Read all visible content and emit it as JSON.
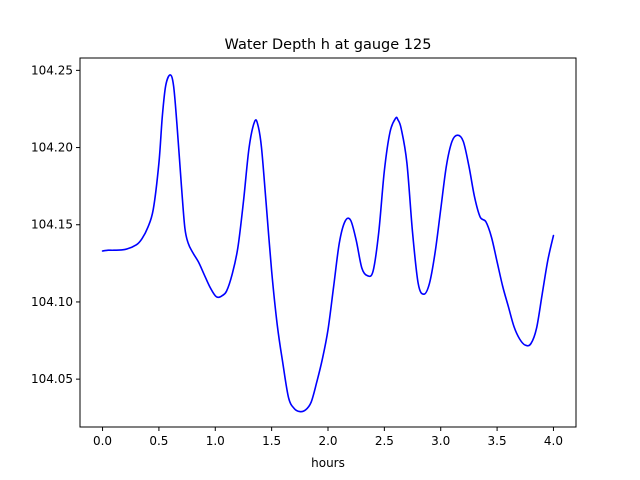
{
  "chart_data": {
    "type": "line",
    "title": "Water Depth h at gauge 125",
    "xlabel": "hours",
    "ylabel": "",
    "xlim": [
      -0.2,
      4.2
    ],
    "ylim": [
      104.019,
      104.258
    ],
    "xticks": [
      0.0,
      0.5,
      1.0,
      1.5,
      2.0,
      2.5,
      3.0,
      3.5,
      4.0
    ],
    "xtick_labels": [
      "0.0",
      "0.5",
      "1.0",
      "1.5",
      "2.0",
      "2.5",
      "3.0",
      "3.5",
      "4.0"
    ],
    "yticks": [
      104.05,
      104.1,
      104.15,
      104.2,
      104.25
    ],
    "ytick_labels": [
      "104.05",
      "104.10",
      "104.15",
      "104.20",
      "104.25"
    ],
    "grid": false,
    "legend": "none",
    "series": [
      {
        "color": "#0000ff",
        "x": [
          0.0,
          0.05,
          0.1,
          0.2,
          0.3,
          0.35,
          0.4,
          0.45,
          0.5,
          0.53,
          0.56,
          0.6,
          0.63,
          0.66,
          0.7,
          0.73,
          0.76,
          0.8,
          0.85,
          0.9,
          0.95,
          1.0,
          1.03,
          1.06,
          1.1,
          1.15,
          1.2,
          1.25,
          1.3,
          1.35,
          1.38,
          1.41,
          1.45,
          1.5,
          1.55,
          1.6,
          1.65,
          1.7,
          1.75,
          1.8,
          1.85,
          1.9,
          1.95,
          2.0,
          2.05,
          2.1,
          2.15,
          2.2,
          2.25,
          2.3,
          2.35,
          2.4,
          2.45,
          2.5,
          2.55,
          2.6,
          2.62,
          2.65,
          2.7,
          2.75,
          2.8,
          2.85,
          2.9,
          2.95,
          3.0,
          3.05,
          3.1,
          3.15,
          3.2,
          3.25,
          3.3,
          3.35,
          3.4,
          3.45,
          3.5,
          3.55,
          3.6,
          3.65,
          3.7,
          3.75,
          3.8,
          3.85,
          3.9,
          3.95,
          4.0
        ],
        "values": [
          104.133,
          104.1335,
          104.1335,
          104.134,
          104.137,
          104.141,
          104.148,
          104.16,
          104.19,
          104.22,
          104.24,
          104.247,
          104.24,
          104.215,
          104.175,
          104.148,
          104.138,
          104.132,
          104.126,
          104.118,
          104.11,
          104.104,
          104.103,
          104.104,
          104.107,
          104.118,
          104.135,
          104.165,
          104.2,
          104.217,
          104.214,
          104.2,
          104.165,
          104.12,
          104.085,
          104.06,
          104.038,
          104.031,
          104.029,
          104.03,
          104.035,
          104.048,
          104.063,
          104.082,
          104.11,
          104.138,
          104.152,
          104.153,
          104.14,
          104.122,
          104.117,
          104.12,
          104.145,
          104.185,
          104.21,
          104.219,
          104.218,
          104.212,
          104.19,
          104.145,
          104.112,
          104.105,
          104.112,
          104.132,
          104.16,
          104.188,
          104.204,
          104.208,
          104.204,
          104.188,
          104.168,
          104.155,
          104.152,
          104.142,
          104.126,
          104.11,
          104.097,
          104.084,
          104.076,
          104.072,
          104.073,
          104.083,
          104.105,
          104.127,
          104.143
        ]
      }
    ]
  }
}
